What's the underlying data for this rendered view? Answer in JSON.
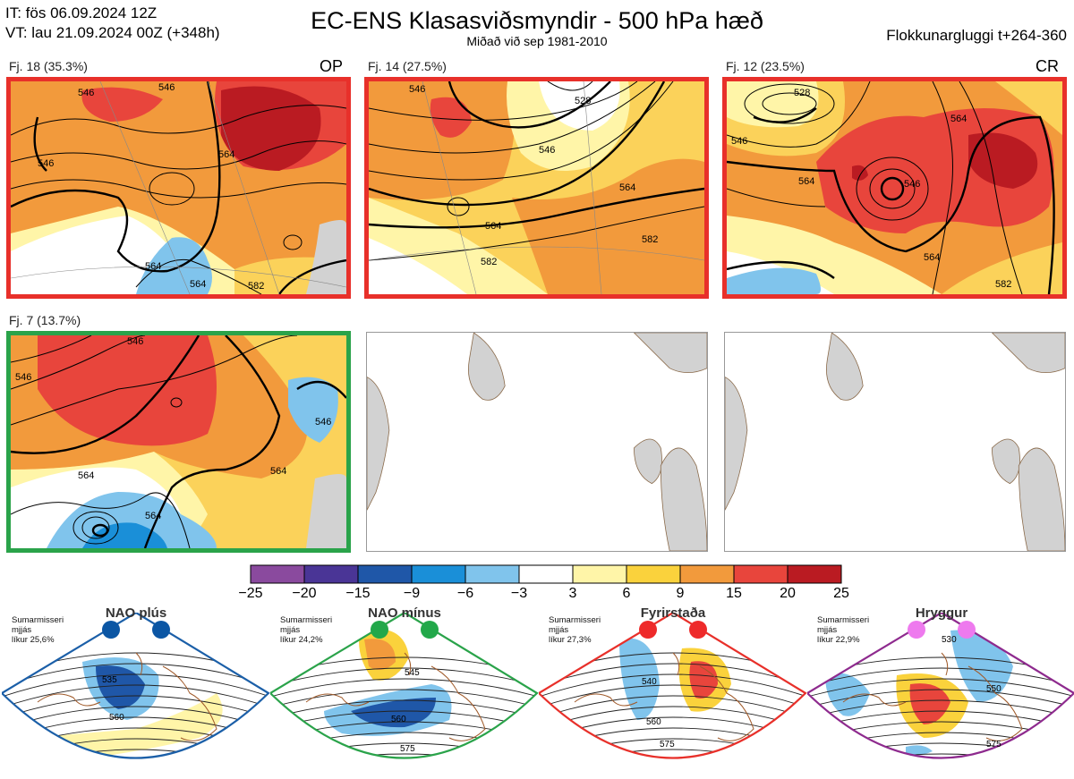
{
  "header": {
    "issue_time": "IT: fös 06.09.2024 12Z",
    "valid_time": "VT: lau 21.09.2024 00Z  (+348h)",
    "title": "EC-ENS Klasasviðsmyndir - 500 hPa hæð",
    "subtitle": "Miðað við sep 1981-2010",
    "window": "Flokkunargluggi t+264-360"
  },
  "panels": [
    {
      "label": "Fj. 18 (35.3%)",
      "tag": "OP",
      "border_color": "#e8302a",
      "contour_labels": [
        "546",
        "546",
        "546",
        "564",
        "564",
        "564",
        "582"
      ]
    },
    {
      "label": "Fj. 14 (27.5%)",
      "tag": "",
      "border_color": "#e8302a",
      "contour_labels": [
        "546",
        "528",
        "546",
        "564",
        "564",
        "582",
        "582"
      ]
    },
    {
      "label": "Fj. 12 (23.5%)",
      "tag": "CR",
      "border_color": "#e8302a",
      "contour_labels": [
        "528",
        "546",
        "564",
        "546",
        "564",
        "564",
        "582"
      ]
    },
    {
      "label": "Fj. 7 (13.7%)",
      "tag": "",
      "border_color": "#2aa34a",
      "contour_labels": [
        "546",
        "546",
        "546",
        "564",
        "564",
        "564"
      ]
    }
  ],
  "colorbar": {
    "ticks": [
      "−25",
      "−20",
      "−15",
      "−9",
      "−6",
      "−3",
      "3",
      "6",
      "9",
      "15",
      "20",
      "25"
    ],
    "colors": [
      "#8a4a9e",
      "#4a3596",
      "#1f57a8",
      "#1a8fd8",
      "#80c4ec",
      "#ffffff",
      "#fff5a8",
      "#fad23c",
      "#f29a3c",
      "#e8453c",
      "#ba1b22"
    ]
  },
  "regimes": [
    {
      "name": "NAO plús",
      "season": "Sumarmisseri",
      "smoothing": "mjjás",
      "probability": "líkur 25,6%",
      "color": "#1b5fa8",
      "marker_color": "#0b56a4",
      "contour_labels": [
        "535",
        "560"
      ]
    },
    {
      "name": "NAO mínus",
      "season": "Sumarmisseri",
      "smoothing": "mjjás",
      "probability": "líkur 24,2%",
      "color": "#2aa34a",
      "marker_color": "#22a84a",
      "contour_labels": [
        "545",
        "560",
        "575"
      ]
    },
    {
      "name": "Fyrirstaða",
      "season": "Sumarmisseri",
      "smoothing": "mjjás",
      "probability": "líkur 27,3%",
      "color": "#e8302a",
      "marker_color": "#ee2a2a",
      "contour_labels": [
        "540",
        "560",
        "575"
      ]
    },
    {
      "name": "Hryggur",
      "season": "Sumarmisseri",
      "smoothing": "mjjás",
      "probability": "líkur 22,9%",
      "color": "#8e2a8e",
      "marker_color": "#ee7aee",
      "contour_labels": [
        "530",
        "550",
        "575"
      ]
    }
  ]
}
